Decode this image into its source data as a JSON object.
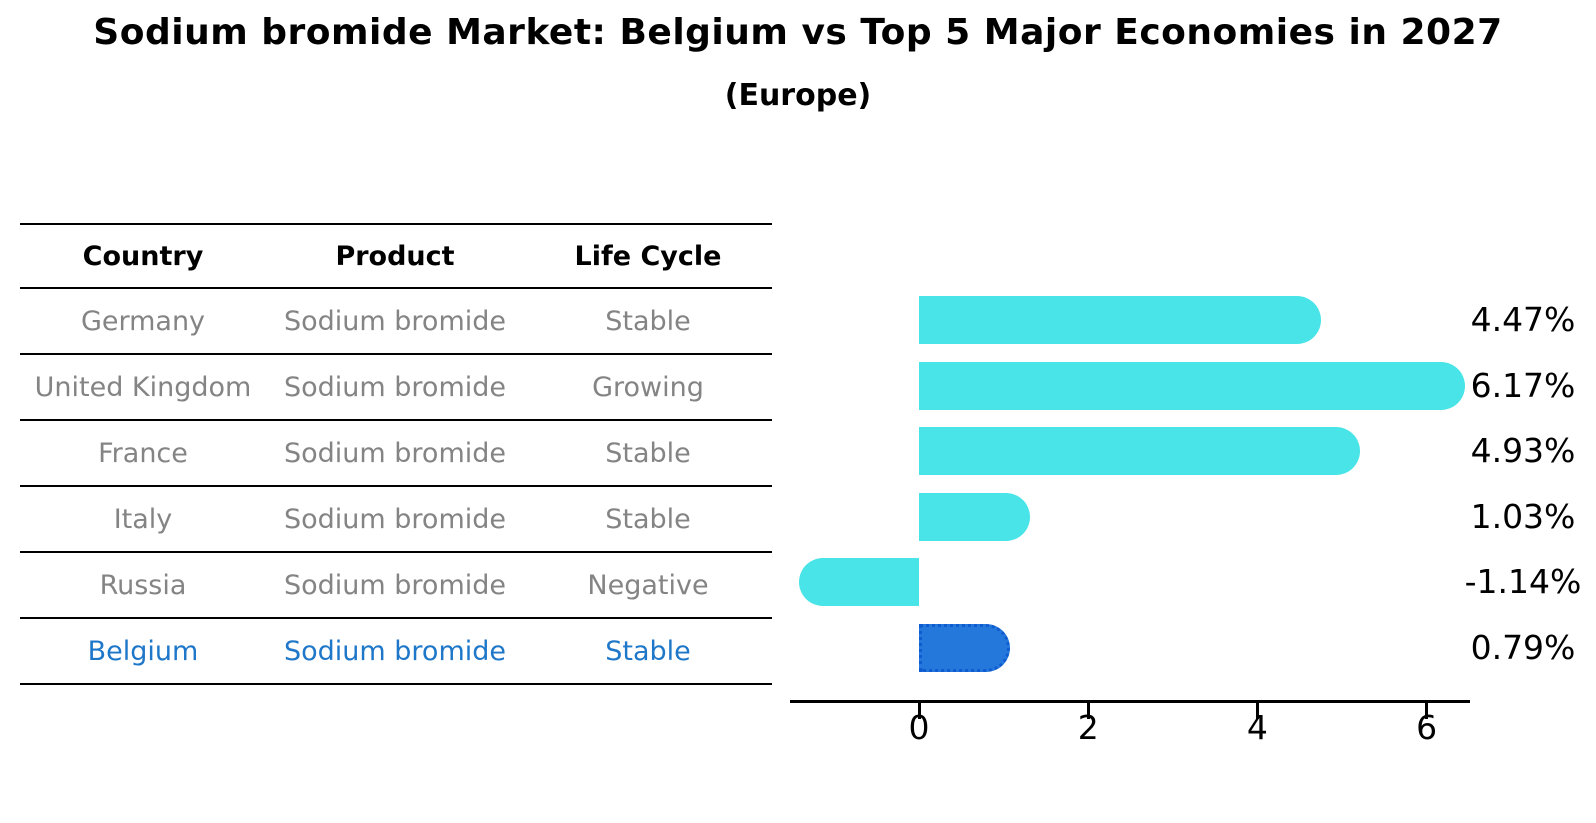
{
  "title": "Sodium bromide Market: Belgium vs Top 5 Major Economies in 2027",
  "subtitle": "(Europe)",
  "table": {
    "headers": [
      "Country",
      "Product",
      "Life Cycle"
    ],
    "rows": [
      {
        "country": "Germany",
        "product": "Sodium bromide",
        "life_cycle": "Stable",
        "highlight": false
      },
      {
        "country": "United Kingdom",
        "product": "Sodium bromide",
        "life_cycle": "Growing",
        "highlight": false
      },
      {
        "country": "France",
        "product": "Sodium bromide",
        "life_cycle": "Stable",
        "highlight": false
      },
      {
        "country": "Italy",
        "product": "Sodium bromide",
        "life_cycle": "Stable",
        "highlight": false
      },
      {
        "country": "Russia",
        "product": "Sodium bromide",
        "life_cycle": "Negative",
        "highlight": false
      },
      {
        "country": "Belgium",
        "product": "Sodium bromide",
        "life_cycle": "Stable",
        "highlight": true
      }
    ]
  },
  "chart_data": {
    "type": "bar",
    "orientation": "horizontal",
    "title": "Sodium bromide Market: Belgium vs Top 5 Major Economies in 2027",
    "subtitle": "(Europe)",
    "categories": [
      "Germany",
      "United Kingdom",
      "France",
      "Italy",
      "Russia",
      "Belgium"
    ],
    "values": [
      4.47,
      6.17,
      4.93,
      1.03,
      -1.14,
      0.79
    ],
    "value_labels": [
      "4.47%",
      "6.17%",
      "4.93%",
      "1.03%",
      "-1.14%",
      "0.79%"
    ],
    "x_ticks": [
      0,
      2,
      4,
      6
    ],
    "xlim": [
      -1.52,
      6.5
    ],
    "grid": false,
    "legend": false,
    "bar_color": "#48E4E8",
    "highlight_index": 5,
    "highlight_color": "#2478DC",
    "highlight_border_color": "#0F5BD0",
    "axis_color": "#000000",
    "table_text_color": "#848484",
    "highlight_text_color": "#1E77C8"
  }
}
